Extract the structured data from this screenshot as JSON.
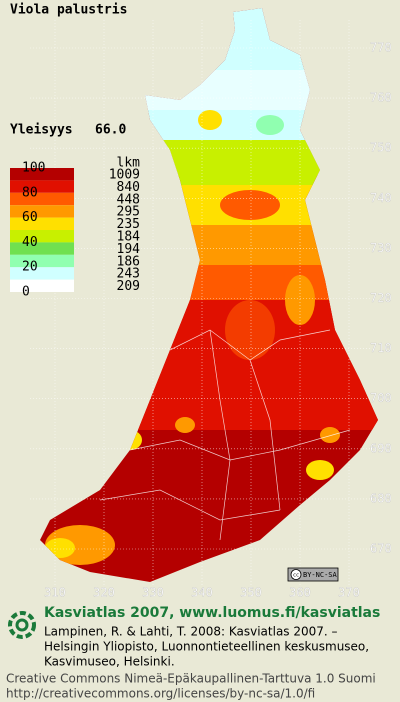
{
  "title": "Viola palustris",
  "frequency": {
    "label": "Yleisyys",
    "value": "66.0"
  },
  "legend": {
    "scale_labels": [
      100,
      80,
      60,
      40,
      20,
      0
    ],
    "colors": [
      "#b40000",
      "#e01000",
      "#ff5a00",
      "#ff9900",
      "#ffe000",
      "#c8f000",
      "#70e050",
      "#90ffb0",
      "#d0ffff",
      "#ffffff"
    ],
    "count_header": "lkm",
    "counts": [
      1009,
      840,
      448,
      295,
      235,
      184,
      194,
      186,
      243,
      209
    ]
  },
  "y_labels": [
    770,
    760,
    750,
    740,
    730,
    720,
    710,
    700,
    690,
    680,
    670
  ],
  "x_labels": [
    310,
    320,
    330,
    340,
    350,
    360,
    370
  ],
  "badge": "BY-NC-SA",
  "footer": {
    "heading": "Kasviatlas 2007, www.luomus.fi/kasviatlas",
    "citation": [
      "Lampinen, R. & Lahti, T. 2008: Kasviatlas 2007. –",
      "Helsingin Yliopisto, Luonnontieteellinen keskusmuseo,",
      "Kasvimuseo, Helsinki."
    ],
    "license": [
      "Creative Commons Nimeä-Epäkaupallinen-Tarttuva 1.0 Suomi",
      "http://creativecommons.org/licenses/by-nc-sa/1.0/fi"
    ]
  }
}
